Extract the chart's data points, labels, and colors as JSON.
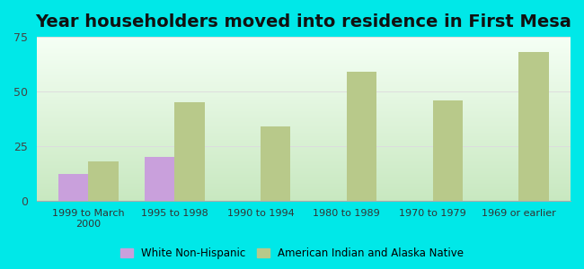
{
  "title": "Year householders moved into residence in First Mesa",
  "categories": [
    "1999 to March\n2000",
    "1995 to 1998",
    "1990 to 1994",
    "1980 to 1989",
    "1970 to 1979",
    "1969 or earlier"
  ],
  "white_values": [
    12,
    20,
    0,
    0,
    0,
    0
  ],
  "native_values": [
    18,
    45,
    34,
    59,
    46,
    68
  ],
  "white_color": "#c9a0dc",
  "native_color": "#b8c98a",
  "background_color": "#00e8e8",
  "plot_bg_top": "#f5fff5",
  "plot_bg_bottom": "#c8e8c0",
  "ylim": [
    0,
    75
  ],
  "yticks": [
    0,
    25,
    50,
    75
  ],
  "legend_white": "White Non-Hispanic",
  "legend_native": "American Indian and Alaska Native",
  "title_fontsize": 14,
  "bar_width": 0.35
}
